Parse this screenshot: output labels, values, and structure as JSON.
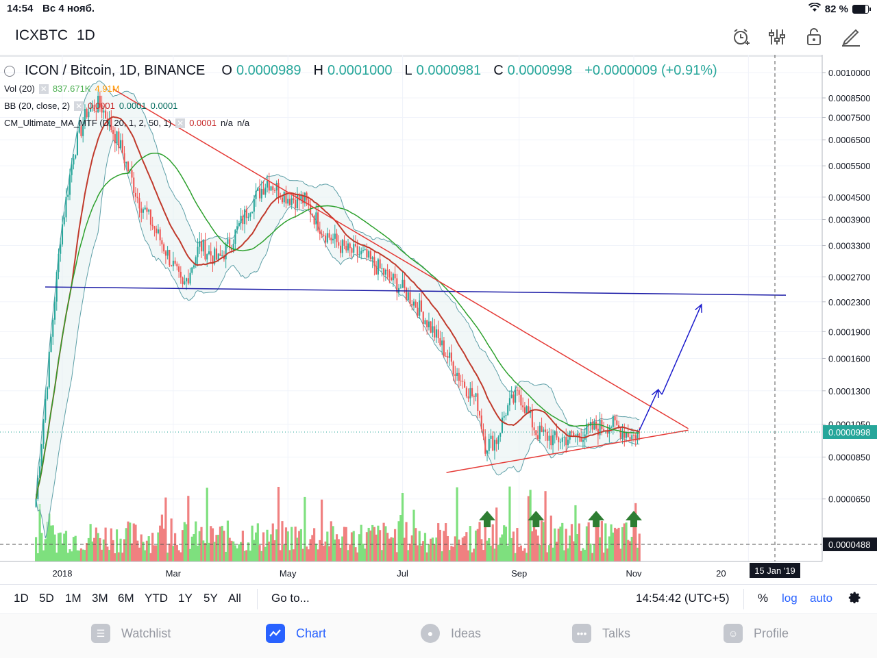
{
  "status_bar": {
    "time": "14:54",
    "date": "Вс 4 нояб.",
    "battery": "82 %",
    "battery_level": 0.82
  },
  "header": {
    "symbol": "ICXBTC",
    "interval": "1D"
  },
  "legend": {
    "title": "ICON / Bitcoin, 1D, BINANCE",
    "open_label": "O",
    "open": "0.0000989",
    "high_label": "H",
    "high": "0.0001000",
    "low_label": "L",
    "low": "0.0000981",
    "close_label": "C",
    "close": "0.0000998",
    "change": "+0.0000009 (+0.91%)",
    "vol_label": "Vol (20)",
    "vol_value": "837.671K",
    "vol_ma": "4.91M",
    "bb_label": "BB (20, close, 2)",
    "bb_v1": "0.0001",
    "bb_v2": "0.0001",
    "bb_v3": "0.0001",
    "cm_label": "CM_Ultimate_MA_MTF (D, 20, 1, 2, 50, 1)",
    "cm_v1": "0.0001",
    "cm_v2": "n/a",
    "cm_v3": "n/a"
  },
  "price_axis": {
    "ticks": [
      "0.0010000",
      "0.0008500",
      "0.0007500",
      "0.0006500",
      "0.0005500",
      "0.0004500",
      "0.0003900",
      "0.0003300",
      "0.0002700",
      "0.0002300",
      "0.0001900",
      "0.0001600",
      "0.0001300",
      "0.0001050",
      "0.0000850",
      "0.0000650"
    ],
    "current_price": "0.0000998",
    "crosshair_price": "0.0000488"
  },
  "time_axis": {
    "labels": [
      "2018",
      "Mar",
      "May",
      "Jul",
      "Sep",
      "Nov",
      "20"
    ],
    "crosshair_date": "15 Jan '19"
  },
  "chart_data": {
    "type": "candlestick",
    "symbol": "ICON / Bitcoin",
    "exchange": "BINANCE",
    "interval": "1D",
    "scale": "log",
    "close_path": {
      "dates": [
        "2017-12-18",
        "2017-12-24",
        "2017-12-31",
        "2018-01-07",
        "2018-01-14",
        "2018-01-21",
        "2018-02-01",
        "2018-02-10",
        "2018-02-20",
        "2018-03-01",
        "2018-03-06",
        "2018-03-15",
        "2018-03-25",
        "2018-04-01",
        "2018-04-10",
        "2018-04-20",
        "2018-05-01",
        "2018-05-10",
        "2018-05-20",
        "2018-06-01",
        "2018-06-10",
        "2018-06-20",
        "2018-07-01",
        "2018-07-10",
        "2018-07-20",
        "2018-08-01",
        "2018-08-10",
        "2018-08-14",
        "2018-08-20",
        "2018-08-25",
        "2018-09-01",
        "2018-09-10",
        "2018-09-20",
        "2018-10-01",
        "2018-10-10",
        "2018-10-20",
        "2018-11-01",
        "2018-11-04"
      ],
      "values": [
        6.5e-05,
        0.00014,
        0.00035,
        0.0006,
        0.00078,
        0.00082,
        0.00062,
        0.00045,
        0.00036,
        0.00029,
        0.00025,
        0.00033,
        0.0003,
        0.00034,
        0.00042,
        0.0005,
        0.00045,
        0.00044,
        0.00036,
        0.00032,
        0.00031,
        0.00028,
        0.00025,
        0.00022,
        0.00018,
        0.00014,
        0.00012,
        9.2e-05,
        9.5e-05,
        0.000115,
        0.000128,
        0.0001,
        9.5e-05,
        9.7e-05,
        0.000102,
        0.000105,
        9.7e-05,
        9.98e-05
      ]
    },
    "last": {
      "open": 9.89e-05,
      "high": 0.0001,
      "low": 9.81e-05,
      "close": 9.98e-05
    },
    "annotations": {
      "horizontal_line_price": 0.00024,
      "descending_trendline": {
        "from": [
          "2018-01-28",
          0.0009
        ],
        "to": [
          "2018-11-30",
          0.000102
        ]
      },
      "ascending_trendline": {
        "from": [
          "2018-07-01",
          7.7e-05
        ],
        "to": [
          "2018-11-30",
          0.000101
        ]
      },
      "up_arrows": [
        "2018-08-15",
        "2018-09-10",
        "2018-10-12",
        "2018-11-01"
      ],
      "projection": [
        [
          "2018-11-04",
          0.000101
        ],
        [
          "2018-11-14",
          0.000131
        ],
        [
          "2018-11-16",
          0.000127
        ],
        [
          "2018-12-07",
          0.000226
        ]
      ]
    }
  },
  "timeframes": [
    "1D",
    "5D",
    "1M",
    "3M",
    "6M",
    "YTD",
    "1Y",
    "5Y",
    "All"
  ],
  "goto_label": "Go to...",
  "clock": "14:54:42 (UTC+5)",
  "scale_options": {
    "percent": "%",
    "log": "log",
    "auto": "auto"
  },
  "tabs": [
    "Watchlist",
    "Chart",
    "Ideas",
    "Talks",
    "Profile"
  ],
  "colors": {
    "up": "#26a69a",
    "down": "#ef5350",
    "vol_up": "#7ee07e",
    "vol_down": "#f08080",
    "accent": "#2962ff"
  }
}
